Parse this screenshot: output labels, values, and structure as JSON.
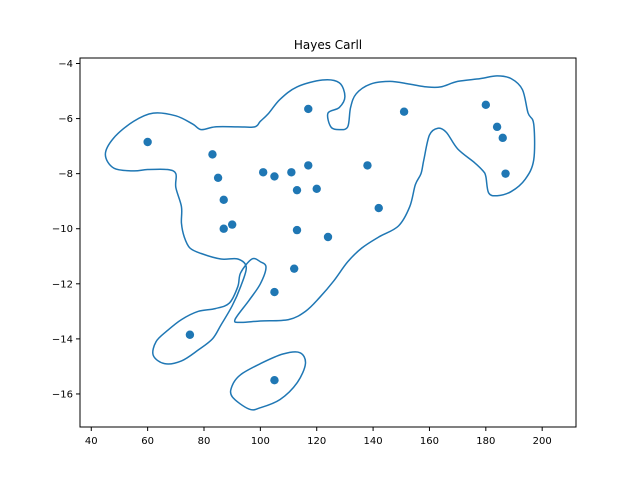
{
  "chart_data": {
    "type": "scatter",
    "title": "Hayes Carll",
    "xlabel": "",
    "ylabel": "",
    "xlim": [
      36,
      212
    ],
    "ylim": [
      -17.2,
      -3.8
    ],
    "xticks": [
      40,
      60,
      80,
      100,
      120,
      140,
      160,
      180,
      200
    ],
    "yticks": [
      -16,
      -14,
      -12,
      -10,
      -8,
      -6,
      -4
    ],
    "grid": false,
    "colors": {
      "points": "#1f77b4",
      "contour": "#1f77b4"
    },
    "points": [
      {
        "x": 60,
        "y": -6.85
      },
      {
        "x": 83,
        "y": -7.3
      },
      {
        "x": 85,
        "y": -8.15
      },
      {
        "x": 87,
        "y": -8.95
      },
      {
        "x": 87,
        "y": -10.0
      },
      {
        "x": 90,
        "y": -9.85
      },
      {
        "x": 101,
        "y": -7.95
      },
      {
        "x": 105,
        "y": -8.1
      },
      {
        "x": 111,
        "y": -7.95
      },
      {
        "x": 117,
        "y": -5.65
      },
      {
        "x": 117,
        "y": -7.7
      },
      {
        "x": 113,
        "y": -8.6
      },
      {
        "x": 120,
        "y": -8.55
      },
      {
        "x": 113,
        "y": -10.05
      },
      {
        "x": 124,
        "y": -10.3
      },
      {
        "x": 112,
        "y": -11.45
      },
      {
        "x": 105,
        "y": -12.3
      },
      {
        "x": 75,
        "y": -13.85
      },
      {
        "x": 105,
        "y": -15.5
      },
      {
        "x": 138,
        "y": -7.7
      },
      {
        "x": 142,
        "y": -9.25
      },
      {
        "x": 151,
        "y": -5.75
      },
      {
        "x": 180,
        "y": -5.5
      },
      {
        "x": 184,
        "y": -6.3
      },
      {
        "x": 186,
        "y": -6.7
      },
      {
        "x": 187,
        "y": -8.0
      }
    ],
    "contours": [
      [
        [
          45,
          -7.3
        ],
        [
          48,
          -6.7
        ],
        [
          55,
          -6.1
        ],
        [
          62,
          -5.8
        ],
        [
          70,
          -5.9
        ],
        [
          76,
          -6.2
        ],
        [
          79,
          -6.4
        ],
        [
          84,
          -6.3
        ],
        [
          92,
          -6.3
        ],
        [
          98,
          -6.3
        ],
        [
          100,
          -6.1
        ],
        [
          103,
          -5.8
        ],
        [
          107,
          -5.3
        ],
        [
          113,
          -4.85
        ],
        [
          122,
          -4.6
        ],
        [
          128,
          -4.7
        ],
        [
          130,
          -5.2
        ],
        [
          128,
          -5.6
        ],
        [
          124,
          -5.8
        ],
        [
          125,
          -6.3
        ],
        [
          128,
          -6.4
        ],
        [
          131,
          -6.3
        ],
        [
          132,
          -5.6
        ],
        [
          134,
          -5.1
        ],
        [
          139,
          -4.75
        ],
        [
          146,
          -4.65
        ],
        [
          153,
          -4.75
        ],
        [
          159,
          -4.85
        ],
        [
          164,
          -4.85
        ],
        [
          170,
          -4.65
        ],
        [
          178,
          -4.55
        ],
        [
          184,
          -4.45
        ],
        [
          189,
          -4.55
        ],
        [
          193,
          -4.95
        ],
        [
          195,
          -5.8
        ],
        [
          197,
          -6.2
        ],
        [
          197,
          -7.5
        ],
        [
          194,
          -8.2
        ],
        [
          189,
          -8.65
        ],
        [
          184,
          -8.8
        ],
        [
          181,
          -8.7
        ],
        [
          180,
          -8.1
        ],
        [
          179,
          -7.9
        ],
        [
          176,
          -7.6
        ],
        [
          170,
          -7.1
        ],
        [
          166,
          -6.5
        ],
        [
          163,
          -6.35
        ],
        [
          160,
          -6.6
        ],
        [
          158,
          -7.5
        ],
        [
          157,
          -8.0
        ],
        [
          155,
          -8.4
        ],
        [
          153,
          -9.2
        ],
        [
          149,
          -9.9
        ],
        [
          142,
          -10.3
        ],
        [
          136,
          -10.7
        ],
        [
          131,
          -11.2
        ],
        [
          126,
          -11.9
        ],
        [
          121,
          -12.5
        ],
        [
          116,
          -13.0
        ],
        [
          110,
          -13.3
        ],
        [
          100,
          -13.35
        ],
        [
          93,
          -13.4
        ],
        [
          91,
          -13.3
        ],
        [
          96,
          -12.6
        ],
        [
          100,
          -12.0
        ],
        [
          102,
          -11.4
        ],
        [
          100,
          -11.2
        ],
        [
          97,
          -11.1
        ],
        [
          93,
          -11.6
        ],
        [
          92,
          -12.1
        ],
        [
          89,
          -12.7
        ],
        [
          84,
          -12.9
        ],
        [
          78,
          -13.0
        ],
        [
          72,
          -13.3
        ],
        [
          67,
          -13.7
        ],
        [
          63,
          -14.1
        ],
        [
          62,
          -14.6
        ],
        [
          66,
          -14.9
        ],
        [
          72,
          -14.8
        ],
        [
          78,
          -14.4
        ],
        [
          83,
          -14.0
        ],
        [
          86,
          -13.5
        ],
        [
          90,
          -12.8
        ],
        [
          93,
          -12.1
        ],
        [
          95,
          -11.4
        ],
        [
          92,
          -11.1
        ],
        [
          86,
          -11.1
        ],
        [
          79,
          -10.9
        ],
        [
          75,
          -10.7
        ],
        [
          73,
          -10.3
        ],
        [
          72,
          -9.8
        ],
        [
          72,
          -9.2
        ],
        [
          70,
          -8.5
        ],
        [
          70,
          -8.0
        ],
        [
          67,
          -7.85
        ],
        [
          60,
          -7.85
        ],
        [
          55,
          -7.9
        ],
        [
          48,
          -7.8
        ],
        [
          45,
          -7.3
        ]
      ],
      [
        [
          90,
          -16.1
        ],
        [
          96,
          -16.55
        ],
        [
          100,
          -16.5
        ],
        [
          107,
          -16.2
        ],
        [
          113,
          -15.6
        ],
        [
          116,
          -14.9
        ],
        [
          114,
          -14.5
        ],
        [
          108,
          -14.55
        ],
        [
          100,
          -14.9
        ],
        [
          93,
          -15.3
        ],
        [
          90,
          -15.7
        ],
        [
          90,
          -16.1
        ]
      ]
    ]
  }
}
